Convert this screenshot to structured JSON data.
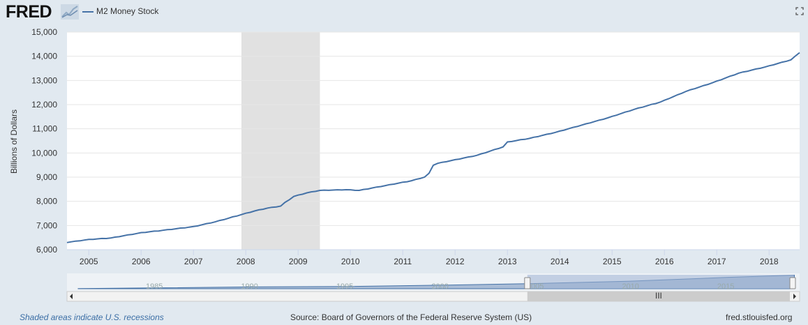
{
  "header": {
    "logo_text": "FRED",
    "logo_icon": "fred-trend-icon",
    "fullscreen_icon": "fullscreen-icon"
  },
  "footer": {
    "recession_note": "Shaded areas indicate U.S. recessions",
    "source": "Source: Board of Governors of the Federal Reserve System (US)",
    "url": "fred.stlouisfed.org"
  },
  "colors": {
    "series": "#4572a7",
    "recession": "#e1e1e1",
    "background": "#e1e9f0",
    "plot": "#ffffff",
    "grid": "#e6e6e6",
    "navigator_fill": "#a9bcd6",
    "navigator_mask": "#9fb2d3"
  },
  "chart_data": {
    "type": "line",
    "title": "",
    "xlabel": "",
    "ylabel": "Billions of Dollars",
    "ylim": [
      6000,
      15000
    ],
    "xlim": [
      "2004-08",
      "2018-08"
    ],
    "y_ticks": [
      "6,000",
      "7,000",
      "8,000",
      "9,000",
      "10,000",
      "11,000",
      "12,000",
      "13,000",
      "14,000",
      "15,000"
    ],
    "x_ticks": [
      "2005",
      "2006",
      "2007",
      "2008",
      "2009",
      "2010",
      "2011",
      "2012",
      "2013",
      "2014",
      "2015",
      "2016",
      "2017",
      "2018"
    ],
    "grid": true,
    "legend_position": "top-left",
    "recessions": [
      {
        "start": "2007-12",
        "end": "2009-06"
      }
    ],
    "series": [
      {
        "name": "M2 Money Stock",
        "x": [
          "2004-08",
          "2005-01",
          "2005-06",
          "2006-01",
          "2006-06",
          "2007-01",
          "2007-06",
          "2007-12",
          "2008-03",
          "2008-06",
          "2008-09",
          "2008-10",
          "2008-12",
          "2009-03",
          "2009-06",
          "2009-12",
          "2010-03",
          "2010-06",
          "2010-12",
          "2011-03",
          "2011-06",
          "2011-07",
          "2011-08",
          "2011-09",
          "2011-12",
          "2012-06",
          "2012-12",
          "2013-01",
          "2013-06",
          "2013-12",
          "2014-06",
          "2014-12",
          "2015-06",
          "2015-12",
          "2016-06",
          "2016-12",
          "2017-06",
          "2017-12",
          "2018-06",
          "2018-08"
        ],
        "values": [
          6300,
          6420,
          6480,
          6700,
          6800,
          6950,
          7150,
          7450,
          7600,
          7720,
          7800,
          7950,
          8200,
          8350,
          8450,
          8480,
          8450,
          8550,
          8750,
          8850,
          9000,
          9150,
          9500,
          9570,
          9680,
          9900,
          10250,
          10450,
          10600,
          10850,
          11150,
          11450,
          11800,
          12100,
          12550,
          12900,
          13300,
          13550,
          13850,
          14150
        ]
      }
    ]
  },
  "navigator": {
    "x_ticks": [
      "1985",
      "1990",
      "1995",
      "2000",
      "2005",
      "2010",
      "2015"
    ],
    "range_start": "2004-08",
    "range_end": "2018-08",
    "scroll_left_icon": "arrow-left-icon",
    "scroll_right_icon": "arrow-right-icon",
    "scroll_grip_icon": "grip-icon"
  }
}
